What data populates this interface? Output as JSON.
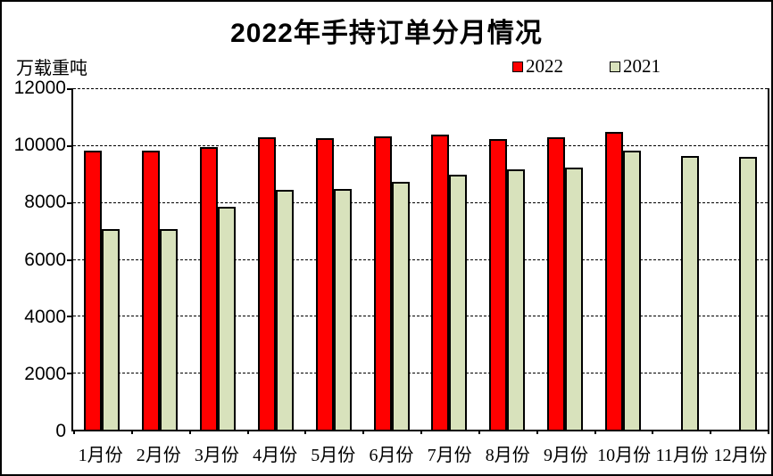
{
  "title": "2022年手持订单分月情况",
  "y_axis_label": "万载重吨",
  "colors": {
    "series_2022": "#FF0000",
    "series_2021": "#D8E2BC",
    "bar_border": "#000000",
    "axis": "#000000",
    "background": "#FFFFFF"
  },
  "legend": {
    "items": [
      {
        "label": "2022",
        "color": "#FF0000"
      },
      {
        "label": "2021",
        "color": "#D8E2BC"
      }
    ],
    "position": "top-right"
  },
  "chart_data": {
    "type": "bar",
    "title": "2022年手持订单分月情况",
    "xlabel": "",
    "ylabel": "万载重吨",
    "categories": [
      "1月份",
      "2月份",
      "3月份",
      "4月份",
      "5月份",
      "6月份",
      "7月份",
      "8月份",
      "9月份",
      "10月份",
      "11月份",
      "12月份"
    ],
    "series": [
      {
        "name": "2022",
        "color": "#FF0000",
        "values": [
          9810,
          9810,
          9940,
          10270,
          10250,
          10300,
          10370,
          10220,
          10270,
          10470,
          null,
          null
        ]
      },
      {
        "name": "2021",
        "color": "#D8E2BC",
        "values": [
          7060,
          7040,
          7830,
          8440,
          8470,
          8710,
          8970,
          9150,
          9220,
          9820,
          9630,
          9580
        ]
      }
    ],
    "ylim": [
      0,
      12000
    ],
    "yticks": [
      0,
      2000,
      4000,
      6000,
      8000,
      10000,
      12000
    ],
    "grid": "horizontal-dashed",
    "legend_position": "top-right"
  }
}
